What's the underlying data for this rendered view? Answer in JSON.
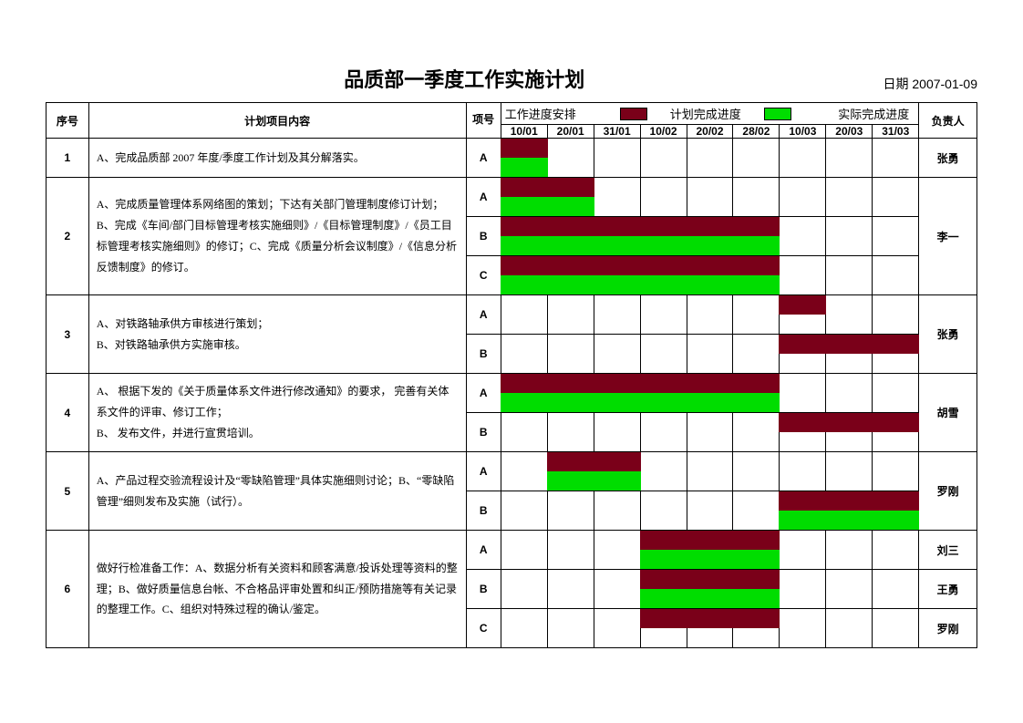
{
  "title": "品质部一季度工作实施计划",
  "date_prefix": "日期",
  "date_value": "2007-01-09",
  "columns": {
    "seq": "序号",
    "desc": "计划项目内容",
    "sub": "项号",
    "owner": "负责人"
  },
  "legend": {
    "schedule_label": "工作进度安排",
    "planned_label": "计划完成进度",
    "actual_label": "实际完成进度"
  },
  "colors": {
    "planned": "#7a0019",
    "actual": "#00dd00",
    "grid": "#000000",
    "background": "#ffffff"
  },
  "date_headers": [
    "10/01",
    "20/01",
    "31/01",
    "10/02",
    "20/02",
    "28/02",
    "10/03",
    "20/03",
    "31/03"
  ],
  "rows": [
    {
      "seq": "1",
      "desc": "A、完成品质部 2007 年度/季度工作计划及其分解落实。",
      "owners": [
        "张勇"
      ],
      "subs": [
        {
          "id": "A",
          "planned": [
            1,
            0,
            0,
            0,
            0,
            0,
            0,
            0,
            0
          ],
          "actual": [
            1,
            0,
            0,
            0,
            0,
            0,
            0,
            0,
            0
          ]
        }
      ]
    },
    {
      "seq": "2",
      "desc": "A、完成质量管理体系网络图的策划；下达有关部门管理制度修订计划；B、完成《车间/部门目标管理考核实施细则》/《目标管理制度》/《员工目标管理考核实施细则》的修订；C、完成《质量分析会议制度》/《信息分析反馈制度》的修订。",
      "owners": [
        "李一"
      ],
      "subs": [
        {
          "id": "A",
          "planned": [
            1,
            1,
            0,
            0,
            0,
            0,
            0,
            0,
            0
          ],
          "actual": [
            1,
            1,
            0,
            0,
            0,
            0,
            0,
            0,
            0
          ]
        },
        {
          "id": "B",
          "planned": [
            1,
            1,
            1,
            1,
            1,
            1,
            0,
            0,
            0
          ],
          "actual": [
            1,
            1,
            1,
            1,
            1,
            1,
            0,
            0,
            0
          ]
        },
        {
          "id": "C",
          "planned": [
            1,
            1,
            1,
            1,
            1,
            1,
            0,
            0,
            0
          ],
          "actual": [
            1,
            1,
            1,
            1,
            1,
            1,
            0,
            0,
            0
          ]
        }
      ]
    },
    {
      "seq": "3",
      "desc": "A、对铁路轴承供方审核进行策划；\nB、对铁路轴承供方实施审核。",
      "owners": [
        "张勇"
      ],
      "subs": [
        {
          "id": "A",
          "planned": [
            0,
            0,
            0,
            0,
            0,
            0,
            1,
            0,
            0
          ],
          "actual": [
            0,
            0,
            0,
            0,
            0,
            0,
            0,
            0,
            0
          ]
        },
        {
          "id": "B",
          "planned": [
            0,
            0,
            0,
            0,
            0,
            0,
            1,
            1,
            1
          ],
          "actual": [
            0,
            0,
            0,
            0,
            0,
            0,
            0,
            0,
            0
          ]
        }
      ]
    },
    {
      "seq": "4",
      "desc": "A、 根据下发的《关于质量体系文件进行修改通知》的要求，   完善有关体系文件的评审、修订工作；\nB、 发布文件，并进行宣贯培训。",
      "owners": [
        "胡雪"
      ],
      "subs": [
        {
          "id": "A",
          "planned": [
            1,
            1,
            1,
            1,
            1,
            1,
            0,
            0,
            0
          ],
          "actual": [
            1,
            1,
            1,
            1,
            1,
            1,
            0,
            0,
            0
          ]
        },
        {
          "id": "B",
          "planned": [
            0,
            0,
            0,
            0,
            0,
            0,
            1,
            1,
            1
          ],
          "actual": [
            0,
            0,
            0,
            0,
            0,
            0,
            0,
            0,
            0
          ]
        }
      ]
    },
    {
      "seq": "5",
      "desc": "A、产品过程交验流程设计及“零缺陷管理”具体实施细则讨论；B、“零缺陷管理”细则发布及实施（试行）。",
      "owners": [
        "罗刚"
      ],
      "subs": [
        {
          "id": "A",
          "planned": [
            0,
            1,
            1,
            0,
            0,
            0,
            0,
            0,
            0
          ],
          "actual": [
            0,
            1,
            1,
            0,
            0,
            0,
            0,
            0,
            0
          ]
        },
        {
          "id": "B",
          "planned": [
            0,
            0,
            0,
            0,
            0,
            0,
            1,
            1,
            1
          ],
          "actual": [
            0,
            0,
            0,
            0,
            0,
            0,
            1,
            1,
            1
          ]
        }
      ]
    },
    {
      "seq": "6",
      "desc": "做好行检准备工作：A、数据分析有关资料和顾客满意/投诉处理等资料的整理；B、做好质量信息台帐、不合格品评审处置和纠正/预防措施等有关记录的整理工作。C、组织对特殊过程的确认/鉴定。",
      "owners": [
        "刘三",
        "王勇",
        "罗刚"
      ],
      "subs": [
        {
          "id": "A",
          "planned": [
            0,
            0,
            0,
            1,
            1,
            1,
            0,
            0,
            0
          ],
          "actual": [
            0,
            0,
            0,
            1,
            1,
            1,
            0,
            0,
            0
          ]
        },
        {
          "id": "B",
          "planned": [
            0,
            0,
            0,
            1,
            1,
            1,
            0,
            0,
            0
          ],
          "actual": [
            0,
            0,
            0,
            1,
            1,
            1,
            0,
            0,
            0
          ]
        },
        {
          "id": "C",
          "planned": [
            0,
            0,
            0,
            1,
            1,
            1,
            0,
            0,
            0
          ],
          "actual": [
            0,
            0,
            0,
            0,
            0,
            0,
            0,
            0,
            0
          ]
        }
      ]
    }
  ]
}
